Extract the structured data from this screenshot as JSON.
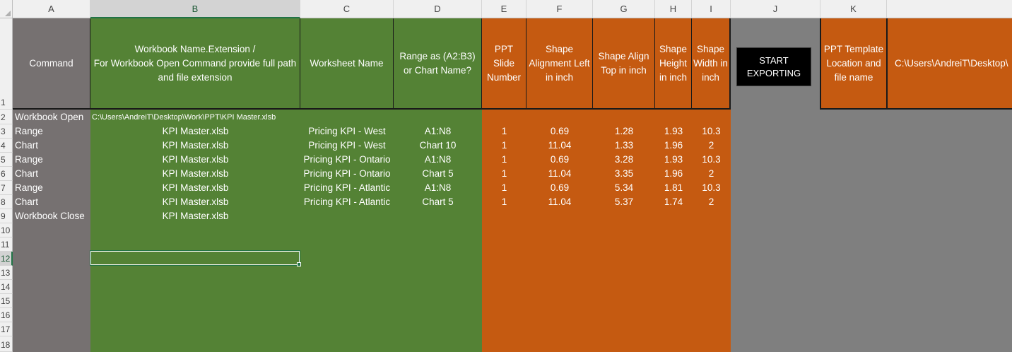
{
  "columns": [
    "A",
    "B",
    "C",
    "D",
    "E",
    "F",
    "G",
    "H",
    "I",
    "J",
    "K"
  ],
  "rows": [
    "1",
    "2",
    "3",
    "4",
    "5",
    "6",
    "7",
    "8",
    "9",
    "10",
    "11",
    "12",
    "13",
    "14",
    "15",
    "16",
    "17",
    "18"
  ],
  "header": {
    "command": "Command",
    "workbook_line1": "Workbook Name.Extension /",
    "workbook_line2": "For Workbook Open Command provide full path and file extension",
    "worksheet": "Worksheet Name",
    "range": "Range as (A2:B3) or Chart Name?",
    "slide": "PPT Slide Number",
    "align_left": "Shape Alignment Left in inch",
    "align_top": "Shape Align Top in inch",
    "height": "Shape Height in inch",
    "width": "Shape Width in inch",
    "ppt_template": "PPT Template Location and file name",
    "template_path": "C:\\Users\\AndreiT\\Desktop\\"
  },
  "start_button": {
    "line1": "START",
    "line2": "EXPORTING"
  },
  "data_rows": [
    {
      "command": "Workbook Open",
      "workbook": "C:\\Users\\AndreiT\\Desktop\\Work\\PPT\\KPI Master.xlsb",
      "worksheet": "",
      "range": "",
      "slide": "",
      "left": "",
      "top": "",
      "height": "",
      "width": ""
    },
    {
      "command": "Range",
      "workbook": "KPI Master.xlsb",
      "worksheet": "Pricing KPI - West",
      "range": "A1:N8",
      "slide": "1",
      "left": "0.69",
      "top": "1.28",
      "height": "1.93",
      "width": "10.3"
    },
    {
      "command": "Chart",
      "workbook": "KPI Master.xlsb",
      "worksheet": "Pricing KPI - West",
      "range": "Chart 10",
      "slide": "1",
      "left": "11.04",
      "top": "1.33",
      "height": "1.96",
      "width": "2"
    },
    {
      "command": "Range",
      "workbook": "KPI Master.xlsb",
      "worksheet": "Pricing KPI - Ontario",
      "range": "A1:N8",
      "slide": "1",
      "left": "0.69",
      "top": "3.28",
      "height": "1.93",
      "width": "10.3"
    },
    {
      "command": "Chart",
      "workbook": "KPI Master.xlsb",
      "worksheet": "Pricing KPI - Ontario",
      "range": "Chart 5",
      "slide": "1",
      "left": "11.04",
      "top": "3.35",
      "height": "1.96",
      "width": "2"
    },
    {
      "command": "Range",
      "workbook": "KPI Master.xlsb",
      "worksheet": "Pricing KPI - Atlantic",
      "range": "A1:N8",
      "slide": "1",
      "left": "0.69",
      "top": "5.34",
      "height": "1.81",
      "width": "10.3"
    },
    {
      "command": "Chart",
      "workbook": "KPI Master.xlsb",
      "worksheet": "Pricing KPI - Atlantic",
      "range": "Chart 5",
      "slide": "1",
      "left": "11.04",
      "top": "5.37",
      "height": "1.74",
      "width": "2"
    },
    {
      "command": "Workbook Close",
      "workbook": "KPI Master.xlsb",
      "worksheet": "",
      "range": "",
      "slide": "",
      "left": "",
      "top": "",
      "height": "",
      "width": ""
    }
  ],
  "colors": {
    "gray": "#767171",
    "green": "#548235",
    "orange": "#c55a11",
    "dark_gray": "#7f7f7f",
    "select": "#217346"
  }
}
